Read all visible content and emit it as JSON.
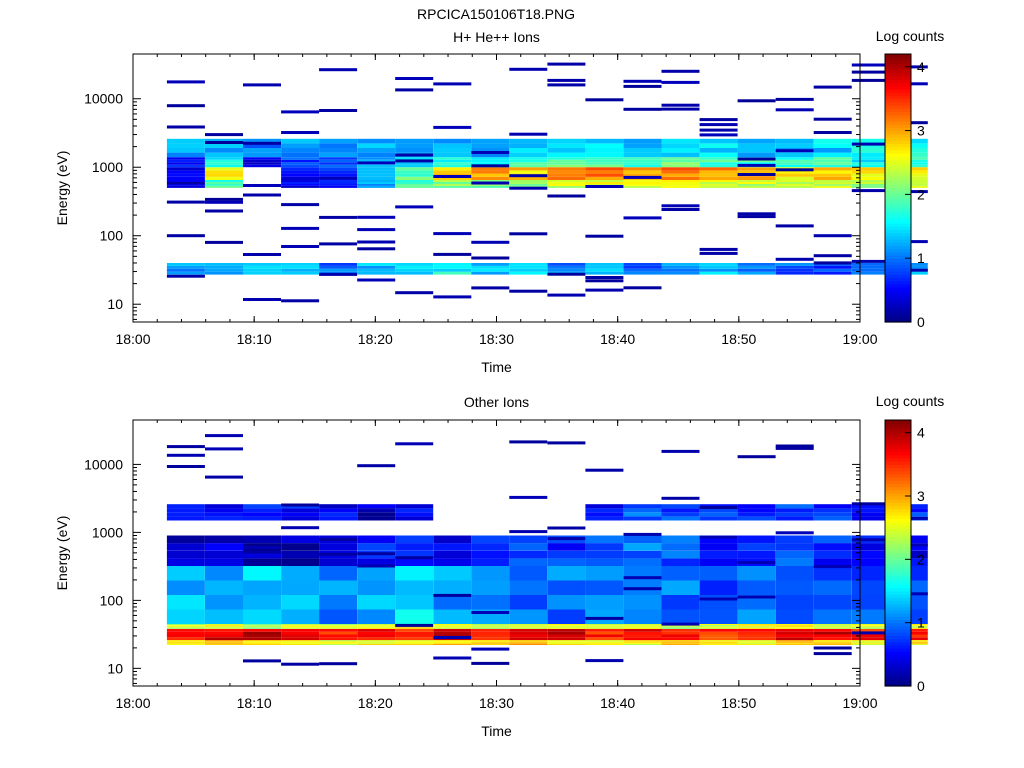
{
  "figure_title": "RPCICA150106T18.PNG",
  "chart_data": [
    {
      "type": "heatmap",
      "title": "H+ He++ Ions",
      "xlabel": "Time",
      "ylabel": "Energy (eV)",
      "x_ticks": [
        "18:00",
        "18:10",
        "18:20",
        "18:30",
        "18:40",
        "18:50",
        "19:00"
      ],
      "y_ticks": [
        "10",
        "100",
        "1000",
        "10000"
      ],
      "y_scale": "log",
      "ylim": [
        5.5,
        45000
      ],
      "xlim_minutes": [
        0,
        60
      ],
      "colorbar": {
        "label": "Log counts",
        "ticks": [
          "0",
          "1",
          "2",
          "3",
          "4"
        ],
        "range": [
          0,
          4.2
        ]
      },
      "bands": [
        {
          "e_lo": 27,
          "e_hi": 40,
          "values": [
            1.1,
            1.3,
            1.5,
            1.3,
            1.0,
            1.3,
            1.4,
            1.6,
            1.3,
            1.4,
            1.1,
            1.2,
            1.0,
            1.2,
            1.3,
            1.1,
            0.9,
            0.8,
            1.0,
            1.2
          ]
        },
        {
          "e_lo": 500,
          "e_hi": 650,
          "values": [
            0.3,
            1.8,
            0.0,
            0.4,
            0.6,
            1.3,
            1.9,
            2.1,
            2.0,
            2.2,
            2.4,
            2.6,
            2.5,
            2.6,
            2.5,
            2.4,
            2.3,
            2.4,
            2.2,
            2.3
          ]
        },
        {
          "e_lo": 650,
          "e_hi": 1000,
          "values": [
            0.4,
            2.6,
            0.0,
            0.5,
            0.6,
            1.5,
            2.0,
            2.7,
            3.0,
            2.8,
            3.0,
            3.2,
            3.0,
            3.2,
            3.1,
            2.9,
            2.7,
            2.8,
            2.7,
            2.6
          ]
        },
        {
          "e_lo": 1000,
          "e_hi": 1400,
          "values": [
            0.6,
            1.6,
            0.3,
            0.8,
            0.9,
            1.2,
            1.4,
            1.6,
            1.7,
            1.8,
            1.9,
            2.0,
            1.9,
            2.0,
            1.9,
            1.8,
            1.7,
            1.8,
            1.6,
            1.7
          ]
        },
        {
          "e_lo": 1400,
          "e_hi": 2600,
          "values": [
            1.2,
            1.3,
            1.1,
            1.2,
            1.1,
            1.2,
            1.2,
            1.3,
            1.2,
            1.3,
            1.4,
            1.5,
            1.4,
            1.5,
            1.4,
            1.4,
            1.3,
            1.4,
            1.5,
            1.6
          ]
        }
      ],
      "scatter_density": 0.32
    },
    {
      "type": "heatmap",
      "title": "Other Ions",
      "xlabel": "Time",
      "ylabel": "Energy (eV)",
      "x_ticks": [
        "18:00",
        "18:10",
        "18:20",
        "18:30",
        "18:40",
        "18:50",
        "19:00"
      ],
      "y_ticks": [
        "10",
        "100",
        "1000",
        "10000"
      ],
      "y_scale": "log",
      "ylim": [
        5.5,
        45000
      ],
      "xlim_minutes": [
        0,
        60
      ],
      "colorbar": {
        "label": "Log counts",
        "ticks": [
          "0",
          "1",
          "2",
          "3",
          "4"
        ],
        "range": [
          0,
          4.2
        ]
      },
      "bands": [
        {
          "e_lo": 22,
          "e_hi": 26,
          "values": [
            2.7,
            2.8,
            2.6,
            2.7,
            2.5,
            2.7,
            2.6,
            2.8,
            2.7,
            2.9,
            2.6,
            2.7,
            2.6,
            2.8,
            2.7,
            2.6,
            2.8,
            2.7,
            2.6,
            2.7
          ]
        },
        {
          "e_lo": 26,
          "e_hi": 38,
          "values": [
            3.7,
            3.8,
            3.9,
            3.8,
            3.6,
            3.7,
            3.6,
            3.8,
            3.7,
            3.6,
            3.8,
            3.5,
            3.7,
            3.6,
            3.5,
            3.6,
            3.9,
            3.8,
            3.6,
            3.7
          ]
        },
        {
          "e_lo": 38,
          "e_hi": 45,
          "values": [
            2.4,
            2.6,
            2.3,
            2.5,
            2.4,
            2.5,
            2.7,
            2.5,
            2.4,
            2.3,
            2.6,
            2.4,
            2.5,
            2.3,
            2.4,
            2.5,
            2.6,
            2.5,
            2.4,
            2.5
          ]
        },
        {
          "e_lo": 45,
          "e_hi": 320,
          "values": [
            1.3,
            1.2,
            1.4,
            1.2,
            1.1,
            1.3,
            1.4,
            1.2,
            1.1,
            1.0,
            1.0,
            1.1,
            1.0,
            1.0,
            0.9,
            1.0,
            0.9,
            0.8,
            0.9,
            0.9
          ]
        },
        {
          "e_lo": 320,
          "e_hi": 900,
          "values": [
            0.2,
            0.3,
            0.2,
            0.2,
            0.3,
            0.6,
            0.7,
            0.4,
            0.8,
            0.9,
            0.7,
            0.8,
            1.0,
            0.9,
            0.7,
            0.6,
            0.8,
            0.7,
            0.5,
            0.4
          ]
        },
        {
          "e_lo": 1500,
          "e_hi": 2600,
          "values": [
            0.7,
            0.6,
            0.7,
            0.6,
            0.5,
            0.3,
            0.5,
            0.0,
            0.0,
            0.0,
            0.0,
            0.6,
            0.9,
            0.8,
            0.7,
            0.7,
            0.8,
            0.7,
            0.6,
            0.7
          ]
        }
      ],
      "scatter_density": 0.18
    }
  ]
}
